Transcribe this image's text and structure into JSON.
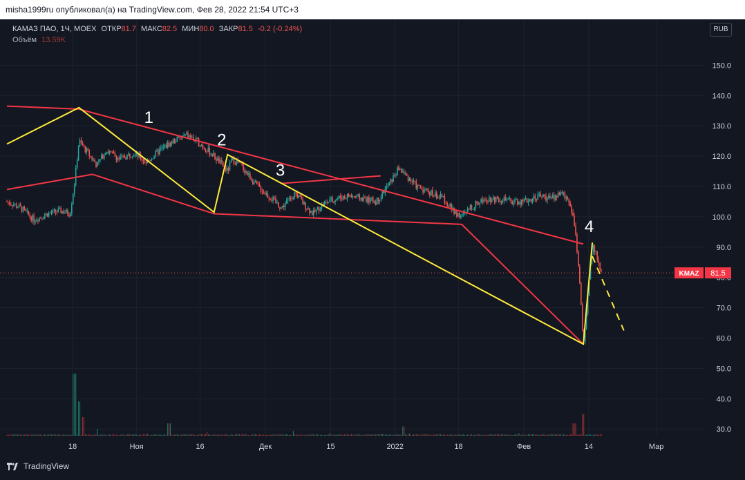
{
  "header": {
    "published_text": "misha1999ru опубликовал(а) на TradingView.com, Фев 28, 2022 21:54 UTC+3"
  },
  "legend": {
    "symbol": "КАМАЗ ПАО, 1Ч, MOEX",
    "open_label": "ОТКР",
    "open_value": "81.7",
    "high_label": "МАКС",
    "high_value": "82.5",
    "low_label": "МИН",
    "low_value": "80.0",
    "close_label": "ЗАКР",
    "close_value": "81.5",
    "change": "-0.2 (-0.24%)",
    "volume_label": "Объём",
    "volume_value": "13.59K"
  },
  "currency_button": "RUB",
  "price_tag": {
    "ticker": "KMAZ",
    "value": "81.5"
  },
  "footer": {
    "brand": "TradingView"
  },
  "colors": {
    "background": "#131722",
    "up": "#26a69a",
    "down": "#ef5350",
    "channel": "#f23645",
    "wave": "#ffeb3b",
    "text": "#d1d4dc"
  },
  "chart_data": {
    "type": "candlestick",
    "title": "КАМАЗ ПАО, 1Ч, MOEX",
    "ylim": [
      28,
      156
    ],
    "y_ticks": [
      "150.0",
      "140.0",
      "130.0",
      "120.0",
      "110.0",
      "100.0",
      "90.0",
      "80.0",
      "70.0",
      "60.0",
      "50.0",
      "40.0",
      "30.0"
    ],
    "x_ticks": [
      "18",
      "Ноя",
      "16",
      "Дек",
      "15",
      "2022",
      "18",
      "Фев",
      "14",
      "Мар"
    ],
    "wave_labels": [
      "1",
      "2",
      "3",
      "4"
    ],
    "last_price": 81.5,
    "price_path": [
      {
        "x": 0,
        "y": 105
      },
      {
        "x": 3,
        "y": 103
      },
      {
        "x": 6,
        "y": 99
      },
      {
        "x": 9,
        "y": 101
      },
      {
        "x": 12,
        "y": 102
      },
      {
        "x": 14,
        "y": 101
      },
      {
        "x": 15,
        "y": 111
      },
      {
        "x": 16,
        "y": 125
      },
      {
        "x": 18,
        "y": 121
      },
      {
        "x": 20,
        "y": 117
      },
      {
        "x": 22,
        "y": 122
      },
      {
        "x": 25,
        "y": 119
      },
      {
        "x": 28,
        "y": 121
      },
      {
        "x": 31,
        "y": 118
      },
      {
        "x": 34,
        "y": 122
      },
      {
        "x": 37,
        "y": 125
      },
      {
        "x": 40,
        "y": 127
      },
      {
        "x": 43,
        "y": 124
      },
      {
        "x": 46,
        "y": 120
      },
      {
        "x": 49,
        "y": 115
      },
      {
        "x": 50,
        "y": 119
      },
      {
        "x": 52,
        "y": 117
      },
      {
        "x": 55,
        "y": 111
      },
      {
        "x": 58,
        "y": 107
      },
      {
        "x": 61,
        "y": 103
      },
      {
        "x": 64,
        "y": 108
      },
      {
        "x": 66,
        "y": 104
      },
      {
        "x": 68,
        "y": 101
      },
      {
        "x": 70,
        "y": 104
      },
      {
        "x": 73,
        "y": 106
      },
      {
        "x": 76,
        "y": 107
      },
      {
        "x": 79,
        "y": 106
      },
      {
        "x": 82,
        "y": 105
      },
      {
        "x": 85,
        "y": 111
      },
      {
        "x": 87,
        "y": 116
      },
      {
        "x": 89,
        "y": 113
      },
      {
        "x": 91,
        "y": 110
      },
      {
        "x": 94,
        "y": 108
      },
      {
        "x": 97,
        "y": 106
      },
      {
        "x": 99,
        "y": 102
      },
      {
        "x": 101,
        "y": 100
      },
      {
        "x": 103,
        "y": 103
      },
      {
        "x": 106,
        "y": 106
      },
      {
        "x": 109,
        "y": 106
      },
      {
        "x": 112,
        "y": 105
      },
      {
        "x": 115,
        "y": 105
      },
      {
        "x": 118,
        "y": 107
      },
      {
        "x": 121,
        "y": 106
      },
      {
        "x": 123,
        "y": 108
      },
      {
        "x": 125,
        "y": 105
      },
      {
        "x": 126,
        "y": 98
      },
      {
        "x": 127,
        "y": 82
      },
      {
        "x": 128,
        "y": 58
      },
      {
        "x": 129,
        "y": 73
      },
      {
        "x": 130,
        "y": 91
      },
      {
        "x": 131,
        "y": 87
      },
      {
        "x": 132,
        "y": 81.5
      }
    ],
    "volume_spikes": [
      {
        "x": 15,
        "v": 1.0
      },
      {
        "x": 16,
        "v": 0.55
      },
      {
        "x": 17,
        "v": 0.3
      },
      {
        "x": 36,
        "v": 0.2
      },
      {
        "x": 88,
        "v": 0.15
      },
      {
        "x": 126,
        "v": 0.2
      },
      {
        "x": 128,
        "v": 0.35
      }
    ],
    "annotations": {
      "red_lines": [
        [
          {
            "x": 0,
            "y": 136.5
          },
          {
            "x": 16,
            "y": 135.5
          },
          {
            "x": 128,
            "y": 91
          }
        ],
        [
          {
            "x": 0,
            "y": 109
          },
          {
            "x": 19,
            "y": 114
          },
          {
            "x": 46,
            "y": 101
          },
          {
            "x": 101,
            "y": 97.5
          },
          {
            "x": 128,
            "y": 58
          }
        ],
        [
          {
            "x": 61,
            "y": 111
          },
          {
            "x": 83,
            "y": 113.5
          }
        ]
      ],
      "yellow_lines": [
        [
          {
            "x": 0,
            "y": 124
          },
          {
            "x": 16,
            "y": 136
          },
          {
            "x": 46,
            "y": 101.5
          },
          {
            "x": 49,
            "y": 120.5
          },
          {
            "x": 128,
            "y": 58
          },
          {
            "x": 130,
            "y": 91.5
          }
        ]
      ],
      "yellow_dashed": [
        [
          {
            "x": 130,
            "y": 87
          },
          {
            "x": 137,
            "y": 62.5
          }
        ]
      ]
    }
  }
}
